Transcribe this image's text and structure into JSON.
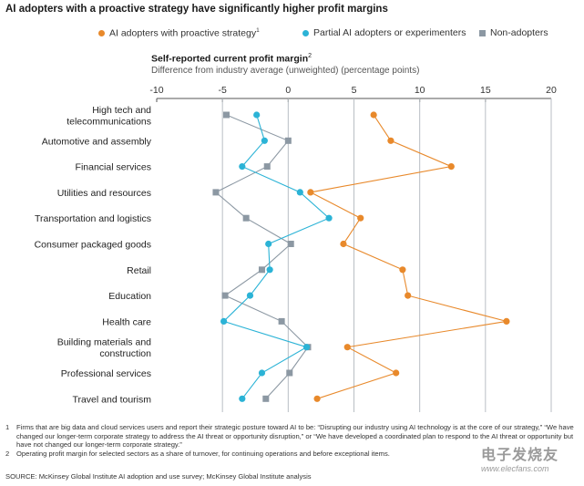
{
  "title": "AI adopters with a proactive strategy have significantly higher profit margins",
  "legend": {
    "items": [
      {
        "label": "AI adopters with proactive strategy",
        "sup": "1",
        "color": "#e8892b",
        "shape": "circle"
      },
      {
        "label": "Partial AI adopters or experimenters",
        "sup": "",
        "color": "#2bb3d6",
        "shape": "circle"
      },
      {
        "label": "Non-adopters",
        "sup": "",
        "color": "#8c98a3",
        "shape": "square"
      }
    ]
  },
  "subtitle": "Self-reported current profit margin",
  "subtitle_sup": "2",
  "subtitle2": "Difference from industry average (unweighted) (percentage points)",
  "chart_data": {
    "type": "line",
    "orientation": "horizontal-dot-plot",
    "title": "Self-reported current profit margin",
    "xlabel": "Difference from industry average (unweighted) (percentage points)",
    "xlim": [
      -10,
      20
    ],
    "xticks": [
      -10,
      -5,
      0,
      5,
      10,
      15,
      20
    ],
    "grid": true,
    "categories": [
      "High tech and telecommunications",
      "Automotive and assembly",
      "Financial services",
      "Utilities and resources",
      "Transportation and logistics",
      "Consumer packaged goods",
      "Retail",
      "Education",
      "Health care",
      "Building materials and construction",
      "Professional services",
      "Travel and tourism"
    ],
    "category_lines": [
      [
        "High tech and",
        "telecommunications"
      ],
      [
        "Automotive and assembly"
      ],
      [
        "Financial services"
      ],
      [
        "Utilities and resources"
      ],
      [
        "Transportation and logistics"
      ],
      [
        "Consumer packaged goods"
      ],
      [
        "Retail"
      ],
      [
        "Education"
      ],
      [
        "Health care"
      ],
      [
        "Building materials and",
        "construction"
      ],
      [
        "Professional services"
      ],
      [
        "Travel and tourism"
      ]
    ],
    "series": [
      {
        "name": "AI adopters with proactive strategy",
        "color": "#e8892b",
        "marker": "circle",
        "values": [
          6.5,
          7.8,
          12.4,
          1.7,
          5.5,
          4.2,
          8.7,
          9.1,
          16.6,
          4.5,
          8.2,
          2.2
        ]
      },
      {
        "name": "Partial AI adopters or experimenters",
        "color": "#2bb3d6",
        "marker": "circle",
        "values": [
          -2.4,
          -1.8,
          -3.5,
          0.9,
          3.1,
          -1.5,
          -1.4,
          -2.9,
          -4.9,
          1.4,
          -2.0,
          -3.5
        ]
      },
      {
        "name": "Non-adopters",
        "color": "#8c98a3",
        "marker": "square",
        "values": [
          -4.7,
          0.0,
          -1.6,
          -5.5,
          -3.2,
          0.2,
          -2.0,
          -4.8,
          -0.5,
          1.5,
          0.1,
          -1.7
        ]
      }
    ]
  },
  "footnotes": [
    {
      "num": "1",
      "text": "Firms that are big data and cloud services users and report their strategic posture toward AI to be: “Disrupting our industry using AI technology is at the core of our strategy,” “We have changed our longer-term corporate strategy to address the AI threat or opportunity disruption,” or “We have developed a coordinated plan to respond to the AI threat or opportunity but have not changed our longer-term corporate strategy.”"
    },
    {
      "num": "2",
      "text": "Operating profit margin for selected sectors as a share of turnover, for continuing operations and before exceptional items."
    }
  ],
  "source": "SOURCE: McKinsey Global Institute AI adoption and use survey; McKinsey Global Institute analysis",
  "watermark": {
    "cn": "电子发烧友",
    "url": "www.elecfans.com"
  }
}
